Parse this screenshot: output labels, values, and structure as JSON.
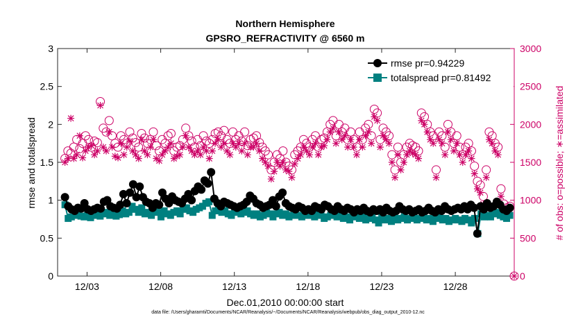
{
  "chart_data": {
    "type": "line",
    "title": "Northern Hemisphere",
    "subtitle": "GPSRO_REFRACTIVITY @ 6560 m",
    "xlabel": "Dec.01,2010 00:00:00 start",
    "ylabel": "rmse and totalspread",
    "ylabel_right": "# of obs: o=possible; ∗=assimilated",
    "xlim": [
      0.0,
      31.0
    ],
    "ylim": [
      0,
      3
    ],
    "ylim_right": [
      0,
      3000
    ],
    "x_ticks": [
      2,
      7,
      12,
      17,
      22,
      27
    ],
    "x_tick_labels": [
      "12/03",
      "12/08",
      "12/13",
      "12/18",
      "12/23",
      "12/28"
    ],
    "y_ticks": [
      0,
      0.5,
      1,
      1.5,
      2,
      2.5,
      3
    ],
    "y_tick_labels": [
      "0",
      "0.5",
      "1",
      "1.5",
      "2",
      "2.5",
      "3"
    ],
    "y2_ticks": [
      0,
      500,
      1000,
      1500,
      2000,
      2500,
      3000
    ],
    "y2_tick_labels": [
      "0",
      "500",
      "1000",
      "1500",
      "2000",
      "2500",
      "3000"
    ],
    "colors": {
      "rmse": "#000000",
      "totalspread": "#008080",
      "obs": "#cc0066"
    },
    "grid": false,
    "legend_position": "top-right",
    "series": [
      {
        "name": "rmse pr=0.94229",
        "key": "rmse",
        "axis": "left",
        "marker": "circle",
        "values": [
          1.04,
          0.92,
          0.88,
          0.86,
          0.9,
          0.89,
          0.96,
          0.88,
          0.86,
          0.88,
          0.9,
          0.89,
          0.98,
          1.0,
          0.92,
          0.9,
          0.89,
          0.94,
          1.08,
          0.96,
          1.1,
          1.21,
          1.04,
          1.18,
          1.04,
          0.98,
          0.96,
          0.9,
          0.96,
          0.94,
          1.1,
          1.02,
          0.96,
          1.05,
          1.0,
          0.98,
          0.96,
          1.02,
          1.08,
          1.0,
          1.12,
          1.18,
          1.14,
          1.26,
          1.22,
          1.37,
          1.02,
          0.96,
          0.92,
          0.98,
          0.96,
          0.94,
          0.92,
          0.9,
          0.92,
          0.94,
          0.98,
          1.06,
          1.02,
          0.96,
          0.94,
          0.9,
          0.92,
          0.94,
          1.0,
          0.92,
          1.05,
          1.1,
          0.96,
          0.92,
          0.9,
          0.88,
          0.92,
          0.9,
          0.86,
          0.88,
          0.86,
          0.92,
          0.9,
          0.88,
          0.94,
          0.92,
          0.88,
          0.86,
          0.92,
          0.88,
          0.86,
          0.9,
          0.88,
          0.84,
          0.88,
          0.86,
          0.9,
          0.86,
          0.84,
          0.88,
          0.86,
          0.88,
          0.84,
          0.9,
          0.86,
          0.84,
          0.86,
          0.92,
          0.88,
          0.86,
          0.88,
          0.84,
          0.86,
          0.88,
          0.84,
          0.86,
          0.9,
          0.86,
          0.84,
          0.88,
          0.86,
          0.92,
          0.88,
          0.86,
          0.88,
          0.9,
          0.88,
          0.92,
          0.88,
          0.94,
          0.9,
          0.56,
          0.92,
          0.88,
          0.96,
          0.9,
          0.92,
          0.98,
          0.94,
          0.88,
          0.86,
          0.9
        ]
      },
      {
        "name": "totalspread pr=0.81492",
        "key": "totalspread",
        "axis": "left",
        "marker": "square",
        "values": [
          0.94,
          0.76,
          0.78,
          0.82,
          0.8,
          0.79,
          0.78,
          0.8,
          0.77,
          0.8,
          0.81,
          0.79,
          0.82,
          0.84,
          0.8,
          0.82,
          0.79,
          0.81,
          0.86,
          0.82,
          0.84,
          0.92,
          0.88,
          0.84,
          0.9,
          0.82,
          0.84,
          0.8,
          0.86,
          0.84,
          0.78,
          0.86,
          0.82,
          0.8,
          0.84,
          0.86,
          0.82,
          0.88,
          0.9,
          0.86,
          0.84,
          0.88,
          0.9,
          0.92,
          0.96,
          0.98,
          0.8,
          0.86,
          0.88,
          0.84,
          0.86,
          0.82,
          0.8,
          0.84,
          0.86,
          0.82,
          0.84,
          0.86,
          0.82,
          0.8,
          0.82,
          0.78,
          0.8,
          0.84,
          0.82,
          0.78,
          0.82,
          0.84,
          0.8,
          0.82,
          0.78,
          0.8,
          0.84,
          0.8,
          0.78,
          0.8,
          0.82,
          0.8,
          0.78,
          0.82,
          0.8,
          0.76,
          0.78,
          0.8,
          0.82,
          0.78,
          0.8,
          0.76,
          0.78,
          0.74,
          0.78,
          0.8,
          0.76,
          0.78,
          0.74,
          0.76,
          0.78,
          0.74,
          0.7,
          0.78,
          0.74,
          0.76,
          0.72,
          0.78,
          0.74,
          0.76,
          0.78,
          0.74,
          0.76,
          0.78,
          0.74,
          0.76,
          0.78,
          0.74,
          0.76,
          0.72,
          0.76,
          0.78,
          0.74,
          0.76,
          0.72,
          0.74,
          0.76,
          0.74,
          0.72,
          0.76,
          0.74,
          0.7,
          0.76,
          0.56,
          0.82,
          0.78,
          0.8,
          0.78,
          0.82,
          0.84,
          0.8,
          0.78,
          0.76,
          0.8
        ]
      },
      {
        "name": "possible",
        "key": "possible",
        "axis": "right",
        "marker": "open-circle",
        "values": [
          1550,
          1650,
          1620,
          1700,
          1800,
          1680,
          1750,
          1850,
          1800,
          1700,
          1780,
          1760,
          2300,
          1950,
          1900,
          2050,
          1850,
          1750,
          1700,
          1850,
          1800,
          1750,
          1900,
          1820,
          1760,
          1700,
          1880,
          1820,
          1750,
          1800,
          1900,
          1720,
          1650,
          1800,
          1750,
          1850,
          1880,
          1650,
          1700,
          1720,
          1800,
          1950,
          1850,
          1780,
          1700,
          1800,
          1720,
          1850,
          1780,
          1750,
          1800,
          1880,
          1900,
          1850,
          1920,
          1800,
          1750,
          1900,
          1800,
          1850,
          1780,
          1900,
          1720,
          1800,
          1820,
          1850,
          1760,
          1700,
          1650,
          1600,
          1400,
          1500,
          1600,
          1550,
          1650,
          1500,
          1450,
          1400,
          1600,
          1650,
          1700,
          1800,
          1750,
          1700,
          1800,
          1850,
          1700,
          1800,
          1820,
          1900,
          2000,
          2050,
          1850,
          2000,
          1900,
          1950,
          1800,
          1900,
          1800,
          1700,
          1900,
          1800,
          1950,
          2000,
          1850,
          2200,
          2150,
          1800,
          1950,
          1900,
          1850,
          1600,
          1400,
          1700,
          1500,
          1600,
          1700,
          1750,
          1720,
          1700,
          1650,
          2150,
          2100,
          2000,
          1900,
          1850,
          1400,
          1900,
          1850,
          1700,
          2000,
          1900,
          1750,
          1850,
          1700,
          1600,
          1700,
          1750,
          1650,
          1450,
          1250,
          1200,
          1050,
          1400,
          1900,
          1850,
          1750,
          1700,
          1150,
          950,
          900,
          920
        ]
      },
      {
        "name": "assimilated",
        "key": "assimilated",
        "axis": "right",
        "marker": "asterisk",
        "values": [
          1500,
          1550,
          2080,
          1550,
          1600,
          1850,
          1560,
          1650,
          1700,
          1720,
          1600,
          1650,
          2250,
          1700,
          1650,
          1900,
          1700,
          1580,
          1560,
          1750,
          1600,
          1700,
          1780,
          1650,
          1600,
          1550,
          1800,
          1650,
          1600,
          1700,
          1800,
          1550,
          1520,
          1600,
          1650,
          1700,
          1750,
          1550,
          1580,
          1600,
          1700,
          1850,
          1700,
          1650,
          1600,
          1650,
          1600,
          1700,
          1650,
          1550,
          1650,
          1750,
          1800,
          1700,
          1750,
          1650,
          1600,
          1750,
          1700,
          1750,
          1650,
          1750,
          1600,
          1700,
          1700,
          1750,
          1650,
          1550,
          1500,
          1450,
          1280,
          1380,
          1500,
          1450,
          1500,
          1400,
          1380,
          1300,
          1480,
          1550,
          1600,
          1700,
          1650,
          1600,
          1700,
          1750,
          1600,
          1700,
          1720,
          1800,
          1900,
          1950,
          1750,
          1900,
          1800,
          1850,
          1700,
          1800,
          1700,
          1600,
          1800,
          1700,
          1850,
          1900,
          1750,
          2100,
          2050,
          1700,
          1850,
          1800,
          1750,
          1500,
          1300,
          1600,
          1400,
          1500,
          1600,
          1650,
          1620,
          1600,
          1550,
          2050,
          2000,
          1900,
          1800,
          1750,
          1300,
          1800,
          1750,
          1600,
          1900,
          1800,
          1650,
          1750,
          1600,
          1500,
          1600,
          1650,
          1550,
          1350,
          1150,
          1100,
          950,
          1300,
          1800,
          1750,
          1650,
          1600,
          1050,
          880,
          850,
          870
        ]
      }
    ]
  },
  "footer": {
    "data_file": "data file: /Users/gharamti/Documents/NCAR/Reanalysis/~/Documents/NCAR/Reanalysis/webpub/obs_diag_output_2010-12.nc"
  }
}
